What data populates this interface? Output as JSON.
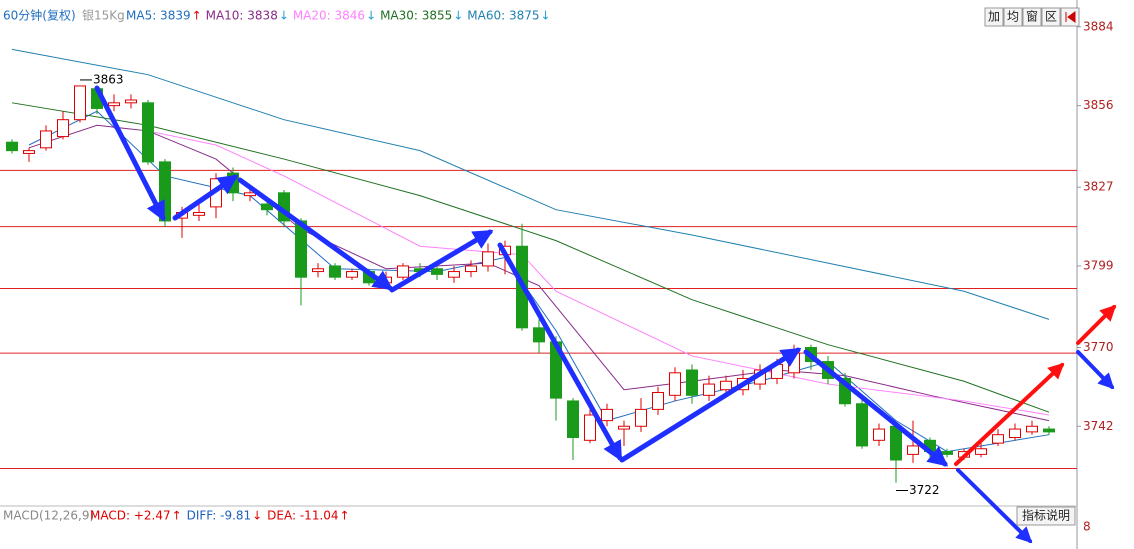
{
  "chart_data": {
    "type": "candlestick",
    "title": "60分钟(复权)",
    "subtitle": "银15Kg",
    "legend": [
      {
        "label": "MA5: 3839",
        "arrow": "↑",
        "color": "#1f6fc0",
        "arrow_color": "#e00000"
      },
      {
        "label": "MA10: 3838",
        "arrow": "↓",
        "color": "#8a2b8a",
        "arrow_color": "#20a0d0"
      },
      {
        "label": "MA20: 3846",
        "arrow": "↓",
        "color": "#ff80ff",
        "arrow_color": "#20a0d0"
      },
      {
        "label": "MA30: 3855",
        "arrow": "↓",
        "color": "#207020",
        "arrow_color": "#20a0d0"
      },
      {
        "label": "MA60: 3875",
        "arrow": "↓",
        "color": "#2080b0",
        "arrow_color": "#20a0d0"
      }
    ],
    "up_color": "#e00000",
    "down_color": "#1a9a1a",
    "open": [
      3843,
      3839,
      3841,
      3845,
      3851,
      3862,
      3856,
      3857,
      3857,
      3836,
      3816,
      3817,
      3820,
      3832,
      3824,
      3821,
      3825,
      3815,
      3797,
      3799,
      3795,
      3797,
      3793,
      3795,
      3798,
      3798,
      3795,
      3797,
      3799,
      3803,
      3806,
      3777,
      3772,
      3751,
      3737,
      3744,
      3741,
      3742,
      3748,
      3753,
      3762,
      3753,
      3755,
      3755,
      3757,
      3759,
      3761,
      3770,
      3765,
      3759,
      3750,
      3737,
      3742,
      3732,
      3737,
      3733,
      3731,
      3732,
      3736,
      3738,
      3740,
      3741
    ],
    "high": [
      3844,
      3841,
      3849,
      3854,
      3863,
      3863,
      3860,
      3860,
      3858,
      3837,
      3820,
      3822,
      3832,
      3834,
      3826,
      3823,
      3826,
      3816,
      3800,
      3800,
      3798,
      3798,
      3797,
      3800,
      3800,
      3799,
      3799,
      3801,
      3807,
      3808,
      3814,
      3780,
      3774,
      3752,
      3748,
      3750,
      3744,
      3752,
      3756,
      3763,
      3764,
      3760,
      3760,
      3762,
      3764,
      3766,
      3771,
      3771,
      3767,
      3761,
      3752,
      3743,
      3743,
      3744,
      3738,
      3734,
      3734,
      3736,
      3741,
      3743,
      3744,
      3742
    ],
    "low": [
      3839,
      3836,
      3840,
      3844,
      3850,
      3853,
      3854,
      3855,
      3835,
      3813,
      3809,
      3815,
      3816,
      3822,
      3822,
      3817,
      3813,
      3785,
      3795,
      3794,
      3794,
      3792,
      3791,
      3794,
      3795,
      3794,
      3793,
      3795,
      3797,
      3796,
      3776,
      3768,
      3744,
      3730,
      3736,
      3742,
      3735,
      3740,
      3746,
      3751,
      3750,
      3751,
      3753,
      3753,
      3755,
      3757,
      3759,
      3762,
      3757,
      3749,
      3734,
      3735,
      3722,
      3729,
      3731,
      3731,
      3730,
      3731,
      3735,
      3737,
      3739,
      3739
    ],
    "close": [
      3840,
      3840,
      3847,
      3851,
      3863,
      3855,
      3857,
      3858,
      3836,
      3815,
      3818,
      3818,
      3830,
      3825,
      3825,
      3819,
      3815,
      3795,
      3798,
      3795,
      3797,
      3793,
      3795,
      3799,
      3797,
      3796,
      3797,
      3799,
      3804,
      3806,
      3777,
      3772,
      3752,
      3738,
      3746,
      3748,
      3742,
      3748,
      3754,
      3761,
      3753,
      3757,
      3758,
      3759,
      3762,
      3764,
      3768,
      3765,
      3759,
      3750,
      3735,
      3741,
      3730,
      3735,
      3733,
      3732,
      3733,
      3734,
      3739,
      3741,
      3742,
      3740
    ],
    "ma_lines": [
      {
        "x": [
          1,
          5,
          9,
          14,
          19,
          25,
          29,
          32,
          35,
          39,
          44,
          48,
          52,
          55,
          61
        ],
        "values": [
          3842,
          3854,
          3831,
          3824,
          3798,
          3797,
          3802,
          3776,
          3744,
          3751,
          3758,
          3765,
          3744,
          3733,
          3739
        ]
      },
      {
        "x": [
          1,
          5,
          8,
          12,
          17,
          22,
          28,
          31,
          36,
          40,
          45,
          49,
          54,
          61
        ],
        "values": [
          3841,
          3849,
          3847,
          3837,
          3812,
          3798,
          3800,
          3792,
          3755,
          3758,
          3762,
          3760,
          3753,
          3744
        ]
      },
      {
        "x": [
          8,
          12,
          16,
          24,
          30,
          32,
          40,
          48,
          56,
          61
        ],
        "values": [
          3847,
          3842,
          3831,
          3806,
          3803,
          3790,
          3767,
          3757,
          3751,
          3746
        ]
      },
      {
        "x": [
          0,
          8,
          16,
          24,
          32,
          40,
          48,
          56,
          61
        ],
        "values": [
          3857,
          3849,
          3837,
          3824,
          3808,
          3787,
          3771,
          3758,
          3747
        ]
      },
      {
        "x": [
          0,
          8,
          16,
          24,
          32,
          40,
          48,
          56,
          61
        ],
        "values": [
          3876,
          3867,
          3851,
          3840,
          3819,
          3810,
          3800,
          3790,
          3780
        ]
      }
    ],
    "hlines": [
      3833,
      3813,
      3791,
      3768,
      3727
    ],
    "max_marker": {
      "index": 4,
      "value": 3863
    },
    "min_marker": {
      "index": 52,
      "value": 3722
    },
    "ylim": [
      3714,
      3890
    ],
    "yticks": [
      3884,
      3856,
      3827,
      3799,
      3770,
      3742
    ],
    "buttons": [
      "加",
      "均",
      "窗",
      "区"
    ],
    "macd": {
      "name": "MACD(12,26,9)",
      "items": [
        {
          "label": "MACD: +2.47",
          "arrow": "↑",
          "color": "#e00000"
        },
        {
          "label": "DIFF: -9.81",
          "arrow": "↓",
          "color": "#2060c0"
        },
        {
          "label": "DEA: -11.04",
          "arrow": "↑",
          "color": "#e00000"
        }
      ],
      "button": "指标说明",
      "axis_label": "8"
    }
  }
}
